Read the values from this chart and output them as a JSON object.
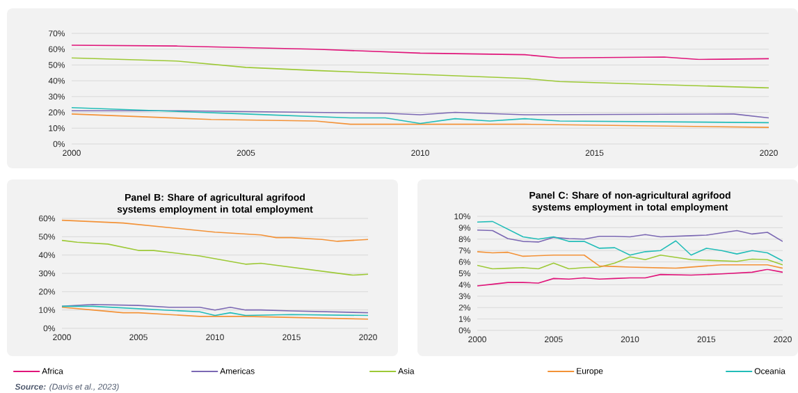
{
  "chart_data": [
    {
      "type": "line",
      "xlim": [
        2000,
        2020
      ],
      "ylim": [
        0,
        70
      ],
      "grid": "y",
      "xticks": [
        2000,
        2005,
        2010,
        2015,
        2020
      ],
      "yticks": [
        {
          "value": 0,
          "label": "0%"
        },
        {
          "value": 10,
          "label": "10%"
        },
        {
          "value": 20,
          "label": "20%"
        },
        {
          "value": 30,
          "label": "30%"
        },
        {
          "value": 40,
          "label": "40%"
        },
        {
          "value": 50,
          "label": "50%"
        },
        {
          "value": 60,
          "label": "60%"
        },
        {
          "value": 70,
          "label": "70%"
        }
      ],
      "series": [
        {
          "color": "#e0157a",
          "x": [
            2000,
            2003,
            2005,
            2007,
            2010,
            2013,
            2014,
            2017,
            2018,
            2020
          ],
          "values": [
            62.5,
            62,
            61,
            60,
            57.5,
            56.5,
            54.5,
            55,
            53.5,
            54
          ]
        },
        {
          "color": "#7b68b3",
          "x": [
            2000,
            2003,
            2009,
            2010,
            2011,
            2013,
            2019,
            2020
          ],
          "values": [
            21,
            21,
            19.5,
            18.5,
            20,
            18.5,
            19,
            16.5
          ]
        },
        {
          "color": "#9dc936",
          "x": [
            2000,
            2003,
            2005,
            2007,
            2010,
            2013,
            2014,
            2020
          ],
          "values": [
            54.5,
            52.5,
            48.5,
            46.5,
            44,
            41.5,
            39.5,
            35.5
          ]
        },
        {
          "color": "#f39237",
          "x": [
            2000,
            2004,
            2007,
            2008,
            2010,
            2013,
            2020
          ],
          "values": [
            19,
            15.5,
            14.5,
            12.5,
            12.5,
            12.5,
            10.5
          ]
        },
        {
          "color": "#22bdb8",
          "x": [
            2000,
            2005,
            2008,
            2009,
            2010,
            2011,
            2012,
            2013,
            2014,
            2020
          ],
          "values": [
            23,
            19,
            16.5,
            16.5,
            13,
            16,
            14.5,
            16,
            14.5,
            13.5
          ]
        }
      ]
    },
    {
      "type": "line",
      "title": "Panel B: Share of agricultural agrifood systems employment in total employment",
      "xlim": [
        2000,
        2020
      ],
      "ylim": [
        0,
        60
      ],
      "grid": "y",
      "xticks": [
        2000,
        2005,
        2010,
        2015,
        2020
      ],
      "yticks": [
        {
          "value": 0,
          "label": "0%"
        },
        {
          "value": 10,
          "label": "10%"
        },
        {
          "value": 20,
          "label": "20%"
        },
        {
          "value": 30,
          "label": "30%"
        },
        {
          "value": 40,
          "label": "40%"
        },
        {
          "value": 50,
          "label": "50%"
        },
        {
          "value": 60,
          "label": "60%"
        }
      ],
      "series": [
        {
          "color": "#f39237",
          "x": [
            2000,
            2004,
            2010,
            2013,
            2014,
            2015,
            2017,
            2018,
            2020
          ],
          "values": [
            59,
            57.5,
            52.5,
            51,
            49.5,
            49.5,
            48.5,
            47.5,
            48.5
          ]
        },
        {
          "color": "#7b68b3",
          "x": [
            2000,
            2002,
            2005,
            2007,
            2009,
            2010,
            2011,
            2012,
            2013,
            2015,
            2020
          ],
          "values": [
            12,
            13,
            12.5,
            11.5,
            11.5,
            10,
            11.5,
            10,
            10,
            9.5,
            8.5
          ]
        },
        {
          "color": "#9dc936",
          "x": [
            2000,
            2001,
            2003,
            2005,
            2006,
            2009,
            2012,
            2013,
            2019,
            2020
          ],
          "values": [
            48,
            47,
            46,
            42.5,
            42.5,
            39.5,
            35,
            35.5,
            29,
            29.5
          ]
        },
        {
          "color": "#f39237",
          "x": [
            2000,
            2002,
            2004,
            2005,
            2007,
            2009,
            2012,
            2020
          ],
          "values": [
            11.5,
            10,
            8.5,
            8.5,
            7.5,
            6.5,
            6.5,
            5
          ]
        },
        {
          "color": "#22bdb8",
          "x": [
            2000,
            2002,
            2009,
            2010,
            2011,
            2012,
            2015,
            2020
          ],
          "values": [
            12,
            12,
            9,
            7,
            8.5,
            7,
            7.5,
            7
          ]
        }
      ]
    },
    {
      "type": "line",
      "title": "Panel C: Share of non-agricultural agrifood systems employment in total employment",
      "xlim": [
        2000,
        2020
      ],
      "ylim": [
        0,
        10
      ],
      "grid": "y",
      "legend": "bottom",
      "xticks": [
        2000,
        2005,
        2010,
        2015,
        2020
      ],
      "yticks": [
        {
          "value": 0,
          "label": "0%"
        },
        {
          "value": 1,
          "label": "1%"
        },
        {
          "value": 2,
          "label": "2%"
        },
        {
          "value": 3,
          "label": "3%"
        },
        {
          "value": 4,
          "label": "4%"
        },
        {
          "value": 5,
          "label": "5%"
        },
        {
          "value": 6,
          "label": "6%"
        },
        {
          "value": 7,
          "label": "7%"
        },
        {
          "value": 8,
          "label": "8%"
        },
        {
          "value": 9,
          "label": "9%"
        },
        {
          "value": 10,
          "label": "10%"
        }
      ],
      "annotations": [
        "**Source:** (Davis et al., 2023)"
      ],
      "series": [
        {
          "name": "Africa",
          "color": "#e0157a",
          "x": [
            2000,
            2001,
            2002,
            2003,
            2004,
            2005,
            2006,
            2007,
            2008,
            2009,
            2010,
            2011,
            2012,
            2014,
            2016,
            2018,
            2019,
            2020
          ],
          "values": [
            3.9,
            4.05,
            4.2,
            4.2,
            4.15,
            4.55,
            4.5,
            4.6,
            4.5,
            4.55,
            4.6,
            4.6,
            4.9,
            4.85,
            4.95,
            5.1,
            5.35,
            5.1
          ]
        },
        {
          "name": "Americas",
          "color": "#7b68b3",
          "x": [
            2000,
            2001,
            2002,
            2003,
            2004,
            2005,
            2006,
            2007,
            2008,
            2009,
            2010,
            2011,
            2012,
            2014,
            2015,
            2016,
            2017,
            2018,
            2019,
            2020
          ],
          "values": [
            8.8,
            8.75,
            8.05,
            7.8,
            7.75,
            8.15,
            8.05,
            8.0,
            8.25,
            8.25,
            8.2,
            8.4,
            8.2,
            8.3,
            8.35,
            8.55,
            8.75,
            8.45,
            8.6,
            7.8
          ]
        },
        {
          "name": "Asia",
          "color": "#9dc936",
          "x": [
            2000,
            2001,
            2002,
            2003,
            2004,
            2005,
            2006,
            2007,
            2008,
            2009,
            2010,
            2011,
            2012,
            2013,
            2014,
            2015,
            2016,
            2017,
            2018,
            2019,
            2020
          ],
          "values": [
            5.7,
            5.4,
            5.45,
            5.5,
            5.4,
            5.9,
            5.4,
            5.5,
            5.55,
            5.9,
            6.45,
            6.2,
            6.6,
            6.4,
            6.2,
            6.15,
            6.1,
            6.05,
            6.25,
            6.2,
            5.75
          ]
        },
        {
          "name": "Europe",
          "color": "#f39237",
          "x": [
            2000,
            2001,
            2002,
            2003,
            2004,
            2005,
            2006,
            2007,
            2008,
            2009,
            2010,
            2013,
            2016,
            2019,
            2020
          ],
          "values": [
            6.9,
            6.8,
            6.85,
            6.5,
            6.55,
            6.6,
            6.6,
            6.6,
            5.65,
            5.6,
            5.55,
            5.45,
            5.75,
            5.75,
            5.45
          ]
        },
        {
          "name": "Oceania",
          "color": "#22bdb8",
          "x": [
            2000,
            2001,
            2003,
            2004,
            2005,
            2006,
            2007,
            2008,
            2009,
            2010,
            2011,
            2012,
            2013,
            2014,
            2015,
            2016,
            2017,
            2018,
            2019,
            2020
          ],
          "values": [
            9.5,
            9.55,
            8.2,
            8.0,
            8.2,
            7.8,
            7.8,
            7.2,
            7.25,
            6.6,
            6.9,
            7.0,
            7.85,
            6.6,
            7.2,
            7.0,
            6.7,
            7.0,
            6.8,
            6.1
          ]
        }
      ]
    }
  ]
}
